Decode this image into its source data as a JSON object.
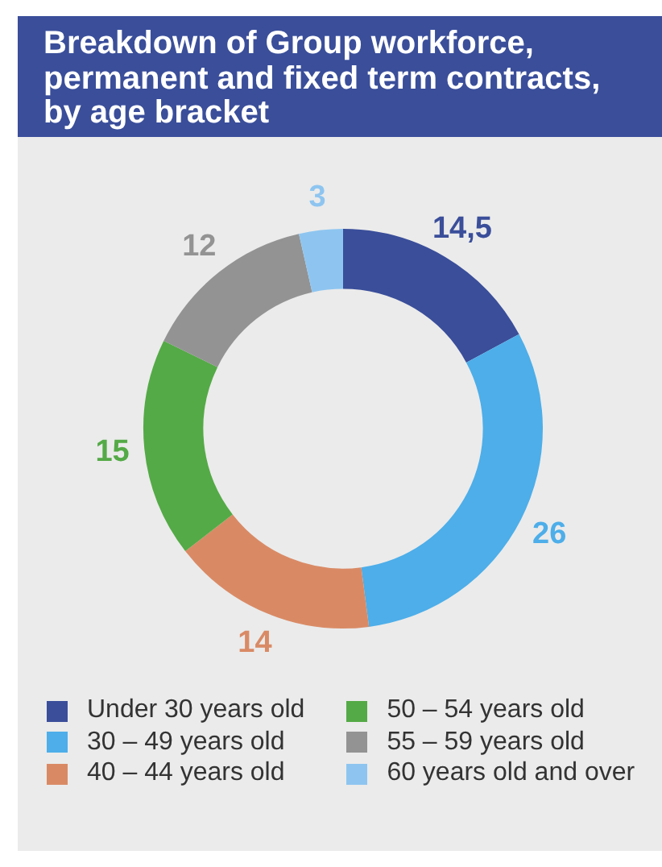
{
  "chart_data": {
    "type": "donut",
    "title": "Breakdown of Group workforce, permanent and fixed term contracts, by age bracket",
    "categories": [
      "Under 30 years old",
      "30 – 49 years old",
      "40 – 44 years old",
      "50 – 54 years old",
      "55 – 59 years old",
      "60 years old and over"
    ],
    "values": [
      14.5,
      26,
      14,
      15,
      12,
      3
    ],
    "value_labels": [
      "14,5",
      "26",
      "14",
      "15",
      "12",
      "3"
    ],
    "colors": [
      "#3a4e9a",
      "#4daee9",
      "#d98a65",
      "#54aa46",
      "#939393",
      "#8ec5f0"
    ],
    "legend": "bottom"
  }
}
